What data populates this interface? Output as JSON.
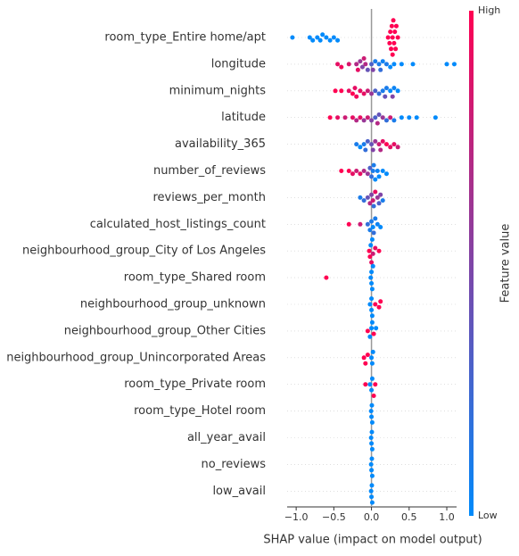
{
  "chart_data": {
    "type": "beeswarm",
    "xlabel": "SHAP value (impact on model output)",
    "xlim": [
      -1.12,
      1.13
    ],
    "xticks": [
      {
        "value": -1,
        "label": "−1.0"
      },
      {
        "value": -0.5,
        "label": "−0.5"
      },
      {
        "value": 0,
        "label": "0.0"
      },
      0.5,
      {
        "value": 1,
        "label": "1.0"
      }
    ],
    "colorbar": {
      "label": "Feature value",
      "high_label": "High",
      "low_label": "Low",
      "low_color": "#008afb",
      "high_color": "#ff0052"
    },
    "features": [
      {
        "name": "room_type_Entire home/apt",
        "shap": [
          -1.05,
          -0.82,
          -0.78,
          -0.72,
          -0.68,
          -0.65,
          -0.6,
          -0.55,
          -0.5,
          -0.45,
          0.22,
          0.24,
          0.25,
          0.26,
          0.27,
          0.28,
          0.28,
          0.29,
          0.3,
          0.31,
          0.32,
          0.33,
          0.35
        ],
        "feature_value": [
          0,
          0,
          0,
          0,
          0,
          0,
          0,
          0,
          0,
          0,
          1,
          1,
          1,
          1,
          1,
          1,
          1,
          1,
          1,
          1,
          1,
          1,
          1
        ]
      },
      {
        "name": "longitude",
        "shap": [
          -0.45,
          -0.4,
          -0.3,
          -0.2,
          -0.15,
          -0.12,
          -0.1,
          -0.05,
          0.0,
          0.05,
          0.1,
          0.15,
          0.2,
          0.25,
          0.3,
          0.4,
          0.55,
          1.0,
          1.1,
          -0.18,
          -0.08,
          0.02,
          0.12
        ],
        "feature_value": [
          0.9,
          0.95,
          0.85,
          0.7,
          0.6,
          0.5,
          0.8,
          0.4,
          0.3,
          0.1,
          0.1,
          0.05,
          0.1,
          0,
          0,
          0,
          0,
          0,
          0,
          0.9,
          0.7,
          0.5,
          0.2
        ]
      },
      {
        "name": "minimum_nights",
        "shap": [
          -0.48,
          -0.4,
          -0.3,
          -0.25,
          -0.2,
          -0.15,
          -0.1,
          -0.05,
          0.0,
          0.05,
          0.1,
          0.15,
          0.2,
          0.25,
          0.3,
          0.35,
          -0.22,
          0.18,
          0.28
        ],
        "feature_value": [
          1,
          1,
          0.9,
          1,
          0.95,
          0.9,
          0.9,
          0.8,
          0.6,
          0.3,
          0.2,
          0.1,
          0.1,
          0,
          0.05,
          0,
          0.9,
          0.4,
          0.5
        ]
      },
      {
        "name": "latitude",
        "shap": [
          -0.55,
          -0.45,
          -0.35,
          -0.25,
          -0.2,
          -0.1,
          -0.05,
          0.0,
          0.05,
          0.1,
          0.15,
          0.2,
          0.3,
          0.4,
          0.5,
          0.6,
          0.85,
          -0.15,
          0.08,
          0.25
        ],
        "feature_value": [
          1,
          0.9,
          0.8,
          0.9,
          0.7,
          0.6,
          0.8,
          0.5,
          0.3,
          0.4,
          0.6,
          0.2,
          0.1,
          0,
          0,
          0,
          0,
          0.9,
          0.7,
          0.8
        ]
      },
      {
        "name": "availability_365",
        "shap": [
          -0.2,
          -0.15,
          -0.1,
          -0.05,
          0.0,
          0.05,
          0.1,
          0.15,
          0.2,
          0.25,
          0.3,
          0.35,
          -0.08,
          0.02,
          0.12
        ],
        "feature_value": [
          0.1,
          0,
          0.1,
          0.3,
          0.4,
          0.6,
          0.8,
          0.9,
          1,
          0.9,
          0.9,
          0.8,
          0.2,
          0.5,
          0.7
        ]
      },
      {
        "name": "number_of_reviews",
        "shap": [
          -0.4,
          -0.3,
          -0.25,
          -0.2,
          -0.15,
          -0.1,
          -0.05,
          0.0,
          0.02,
          0.05,
          0.08,
          0.1,
          0.15,
          0.2,
          -0.02,
          0.03
        ],
        "feature_value": [
          1,
          1,
          0.9,
          0.8,
          0.9,
          0.7,
          0.6,
          0.2,
          0.1,
          0,
          0.05,
          0,
          0,
          0,
          0.3,
          0.1
        ]
      },
      {
        "name": "reviews_per_month",
        "shap": [
          -0.15,
          -0.1,
          -0.05,
          0.0,
          0.02,
          0.05,
          0.08,
          0.1,
          0.15,
          -0.02,
          0.03,
          0.12
        ],
        "feature_value": [
          0.1,
          0.2,
          0.4,
          0.5,
          0.8,
          0.9,
          0.6,
          0.3,
          0.1,
          0.7,
          0.2,
          0.5
        ]
      },
      {
        "name": "calculated_host_listings_count",
        "shap": [
          -0.3,
          -0.15,
          -0.05,
          0.0,
          0.02,
          0.05,
          0.08,
          0.12,
          -0.02,
          0.03
        ],
        "feature_value": [
          1,
          0.8,
          0.2,
          0.1,
          0,
          0.1,
          0.05,
          0,
          0.1,
          0.2
        ]
      },
      {
        "name": "neighbourhood_group_City of Los Angeles",
        "shap": [
          -0.03,
          -0.02,
          0.0,
          0.02,
          0.05,
          0.1,
          -0.01,
          0.01
        ],
        "feature_value": [
          1,
          1,
          0.9,
          0.8,
          0.9,
          1,
          0,
          0
        ]
      },
      {
        "name": "room_type_Shared room",
        "shap": [
          -0.6,
          0.0,
          0.0,
          0.01,
          -0.01,
          0.02
        ],
        "feature_value": [
          1,
          0,
          0,
          0,
          0,
          0
        ]
      },
      {
        "name": "neighbourhood_group_unknown",
        "shap": [
          -0.02,
          0.0,
          0.01,
          0.05,
          0.1,
          0.12,
          0.0
        ],
        "feature_value": [
          0,
          0,
          0,
          1,
          1,
          1,
          0
        ]
      },
      {
        "name": "neighbourhood_group_Other Cities",
        "shap": [
          -0.05,
          -0.02,
          0.0,
          0.01,
          0.03,
          0.06
        ],
        "feature_value": [
          1,
          0,
          0,
          0,
          1,
          0
        ]
      },
      {
        "name": "neighbourhood_group_Unincorporated Areas",
        "shap": [
          -0.1,
          -0.08,
          -0.05,
          0.0,
          0.01,
          0.02
        ],
        "feature_value": [
          1,
          1,
          1,
          0,
          0,
          0
        ]
      },
      {
        "name": "room_type_Private room",
        "shap": [
          -0.08,
          -0.02,
          0.0,
          0.01,
          0.03,
          0.05
        ],
        "feature_value": [
          1,
          0,
          0,
          0,
          1,
          1
        ]
      },
      {
        "name": "room_type_Hotel room",
        "shap": [
          0.0,
          0.005,
          -0.005,
          0.01
        ],
        "feature_value": [
          0,
          0,
          0,
          0
        ]
      },
      {
        "name": "all_year_avail",
        "shap": [
          0.0,
          0.005,
          -0.005,
          0.01
        ],
        "feature_value": [
          0,
          0,
          0,
          0
        ]
      },
      {
        "name": "no_reviews",
        "shap": [
          0.0,
          0.005,
          -0.005,
          0.01
        ],
        "feature_value": [
          0,
          0,
          0,
          0
        ]
      },
      {
        "name": "low_avail",
        "shap": [
          0.0,
          0.005,
          -0.005,
          0.01
        ],
        "feature_value": [
          0,
          0,
          0,
          0
        ]
      }
    ]
  }
}
